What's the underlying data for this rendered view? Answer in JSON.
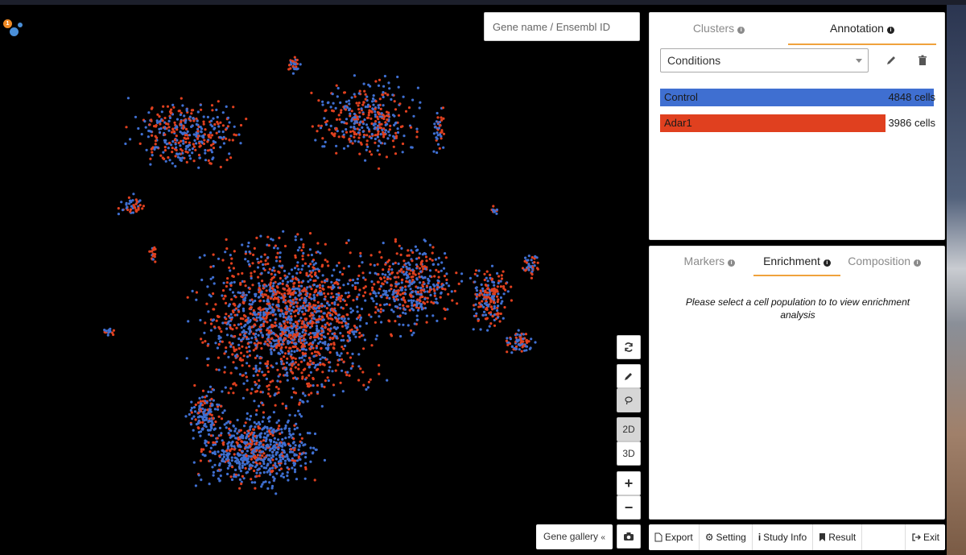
{
  "colors": {
    "control": "#3f6fd1",
    "adar1": "#e0401f",
    "accent_tab": "#f0a23c"
  },
  "logo": {
    "badge": "1"
  },
  "search": {
    "placeholder": "Gene name / Ensembl ID"
  },
  "annotation_panel": {
    "tabs": [
      {
        "label": "Clusters",
        "active": false
      },
      {
        "label": "Annotation",
        "active": true
      }
    ],
    "select_value": "Conditions",
    "groups": [
      {
        "label": "Control",
        "count_text": "4848 cells",
        "cells": 4848,
        "color": "#3f6fd1"
      },
      {
        "label": "Adar1",
        "count_text": "3986 cells",
        "cells": 3986,
        "color": "#e0401f"
      }
    ]
  },
  "analysis_panel": {
    "tabs": [
      {
        "label": "Markers",
        "active": false
      },
      {
        "label": "Enrichment",
        "active": true
      },
      {
        "label": "Composition",
        "active": false
      }
    ],
    "message": "Please select a cell population to to view enrichment analysis"
  },
  "toolbar": {
    "mode_2d": "2D",
    "mode_3d": "3D",
    "zoom_in": "+",
    "zoom_out": "−"
  },
  "gallery": {
    "label": "Gene gallery"
  },
  "footer": {
    "export": "Export",
    "setting": "Setting",
    "study_info": "Study Info",
    "result": "Result",
    "exit": "Exit"
  }
}
